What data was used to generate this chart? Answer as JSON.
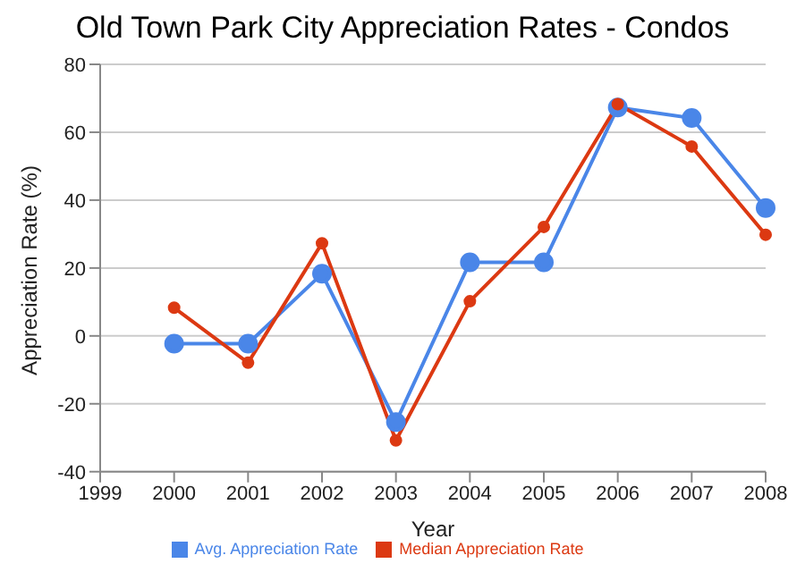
{
  "chart_data": {
    "type": "line",
    "title": "Old Town Park City Appreciation Rates - Condos",
    "xlabel": "Year",
    "ylabel": "Appreciation Rate (%)",
    "categories": [
      "1999",
      "2000",
      "2001",
      "2002",
      "2003",
      "2004",
      "2005",
      "2006",
      "2007",
      "2008"
    ],
    "series": [
      {
        "name": "Avg. Appreciation Rate",
        "color": "#4a86e8",
        "values": [
          null,
          -2.3,
          -2.3,
          18.3,
          -25.4,
          21.7,
          21.7,
          67.3,
          64.2,
          37.7
        ]
      },
      {
        "name": "Median Appreciation Rate",
        "color": "#dc3912",
        "values": [
          null,
          8.3,
          -7.9,
          27.3,
          -30.8,
          10.2,
          32.1,
          68.3,
          55.8,
          29.8
        ]
      }
    ],
    "ylim": [
      -40,
      80
    ],
    "yticks": [
      -40,
      -20,
      0,
      20,
      40,
      60,
      80
    ],
    "grid": "y",
    "legend": "bottom",
    "marker": "circle",
    "line_style": "solid"
  }
}
